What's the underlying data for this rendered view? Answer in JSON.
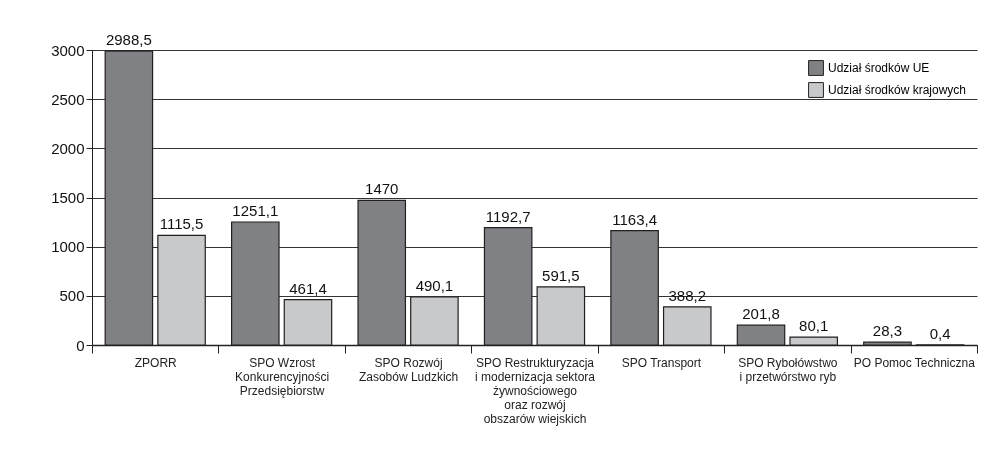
{
  "chart_data": {
    "type": "bar",
    "categories": [
      "ZPORR",
      "SPO Wzrost\nKonkurencyjności\nPrzedsiębiorstw",
      "SPO Rozwój\nZasobów Ludzkich",
      "SPO Restrukturyzacja\ni modernizacja sektora\nżywnościowego\noraz rozwój\nobszarów wiejskich",
      "SPO Transport",
      "SPO Rybołówstwo\ni przetwórstwo ryb",
      "PO Pomoc Techniczna"
    ],
    "series": [
      {
        "name": "Udział środków UE",
        "color": "#808184",
        "values": [
          2988.5,
          1251.1,
          1470,
          1192.7,
          1163.4,
          201.8,
          28.3
        ],
        "value_labels": [
          "2988,5",
          "1251,1",
          "1470",
          "1192,7",
          "1163,4",
          "201,8",
          "28,3"
        ]
      },
      {
        "name": "Udział środków krajowych",
        "color": "#c8c9cb",
        "values": [
          1115.5,
          461.4,
          490.1,
          591.5,
          388.2,
          80.1,
          0.4
        ],
        "value_labels": [
          "1115,5",
          "461,4",
          "490,1",
          "591,5",
          "388,2",
          "80,1",
          "0,4"
        ]
      }
    ],
    "ylim": [
      0,
      3000
    ],
    "yticks": [
      0,
      500,
      1000,
      1500,
      2000,
      2500,
      3000
    ],
    "grid": "y",
    "legend": "top right"
  }
}
